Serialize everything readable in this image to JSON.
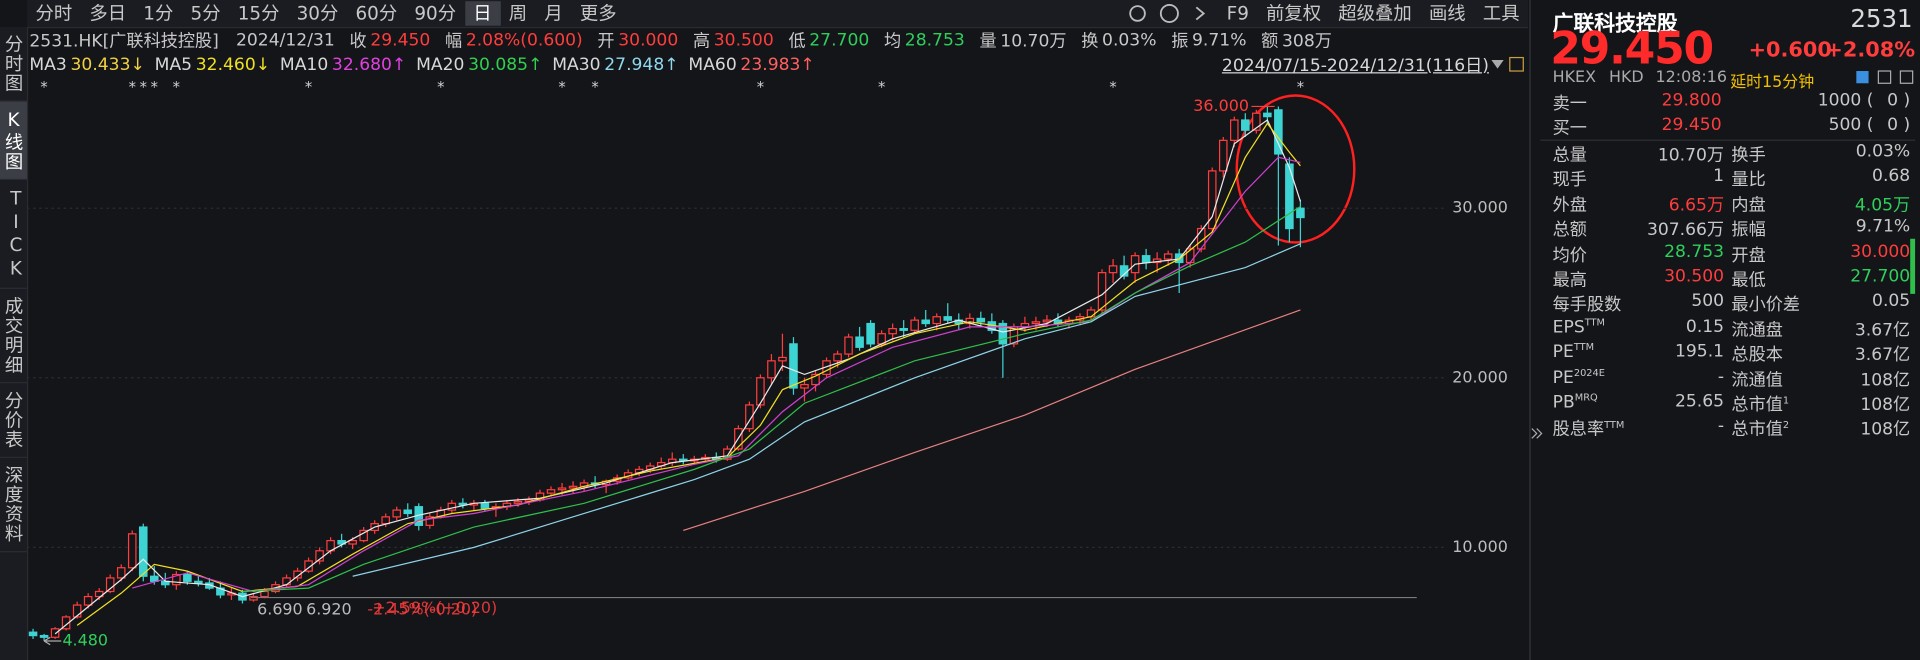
{
  "toolbar": {
    "periods": [
      "分时",
      "多日",
      "1分",
      "5分",
      "15分",
      "30分",
      "60分",
      "90分",
      "日",
      "周",
      "月",
      "更多"
    ],
    "selected": 8,
    "tools": [
      "F9",
      "前复权",
      "超级叠加",
      "画线",
      "工具"
    ]
  },
  "side_tabs": [
    "分时图",
    "K线图",
    "TICK",
    "成交明细",
    "分价表",
    "深度资料"
  ],
  "side_selected": 1,
  "info": {
    "symbol": "2531.HK[广联科技控股]",
    "date": "2024/12/31",
    "fields": [
      {
        "label": "收",
        "value": "29.450",
        "color": "#ff3d3d"
      },
      {
        "label": "幅",
        "value": "2.08%(0.600)",
        "color": "#ff3d3d"
      },
      {
        "label": "开",
        "value": "30.000",
        "color": "#ff3d3d"
      },
      {
        "label": "高",
        "value": "30.500",
        "color": "#ff3d3d"
      },
      {
        "label": "低",
        "value": "27.700",
        "color": "#2fcf5c"
      },
      {
        "label": "均",
        "value": "28.753",
        "color": "#2fcf5c"
      },
      {
        "label": "量",
        "value": "10.70万"
      },
      {
        "label": "换",
        "value": "0.03%"
      },
      {
        "label": "振",
        "value": "9.71%"
      },
      {
        "label": "额",
        "value": "308万"
      }
    ]
  },
  "range": "2024/07/15-2024/12/31(116日)",
  "chart_data": {
    "type": "candlestick",
    "up_color": "#ff3d3d",
    "down_color": "#3ed3d3",
    "ylim": [
      3.36,
      37.8
    ],
    "yticks": [
      {
        "value": 30,
        "label": "30.000"
      },
      {
        "value": 20,
        "label": "20.000"
      },
      {
        "value": 10,
        "label": "10.000"
      }
    ],
    "grid": true,
    "ma": [
      {
        "name": "MA3",
        "value_label": "30.433↓",
        "color": "#f0d040",
        "line_color": "#e8e8e8",
        "x": [
          2,
          5,
          8,
          10,
          12,
          16,
          19,
          23,
          27,
          31,
          35,
          40,
          46,
          52,
          58,
          63,
          66,
          68,
          70,
          74,
          78,
          84,
          88,
          92,
          97,
          100,
          104,
          107,
          109,
          112,
          114,
          115
        ],
        "values": [
          4.9,
          6.5,
          8.1,
          9.3,
          8.0,
          7.8,
          7.1,
          7.8,
          9.8,
          11.2,
          11.9,
          12.6,
          12.9,
          13.8,
          15.0,
          15.4,
          18.5,
          20.7,
          20.2,
          21.1,
          22.3,
          23.4,
          22.7,
          23.2,
          24.9,
          26.7,
          27.0,
          29.5,
          33.8,
          35.2,
          32.4,
          30.4
        ]
      },
      {
        "name": "MA5",
        "value_label": "32.460↓",
        "color": "#f0e020",
        "line_color": "#f0e020",
        "x": [
          4,
          8,
          11,
          14,
          19,
          24,
          29,
          34,
          38,
          44,
          50,
          56,
          63,
          66,
          68,
          71,
          75,
          80,
          85,
          90,
          96,
          100,
          104,
          107,
          110,
          112,
          114,
          115
        ],
        "values": [
          5.4,
          7.3,
          9.0,
          8.6,
          7.4,
          7.7,
          9.6,
          11.4,
          12.0,
          12.5,
          13.6,
          14.5,
          15.3,
          17.2,
          19.3,
          20.1,
          21.4,
          22.6,
          23.3,
          22.8,
          23.6,
          25.7,
          27.0,
          28.6,
          33.0,
          35.0,
          33.3,
          32.5
        ]
      },
      {
        "name": "MA10",
        "value_label": "32.680↑",
        "color": "#e040e0",
        "line_color": "#d040d0",
        "x": [
          9,
          14,
          20,
          25,
          30,
          35,
          40,
          50,
          60,
          64,
          68,
          72,
          78,
          85,
          90,
          96,
          100,
          105,
          110,
          113,
          115
        ],
        "values": [
          7.6,
          8.5,
          7.4,
          7.8,
          9.8,
          11.6,
          12.0,
          13.3,
          14.9,
          15.4,
          18.0,
          20.0,
          21.8,
          23.0,
          23.0,
          23.3,
          25.0,
          26.8,
          31.0,
          33.0,
          32.7
        ]
      },
      {
        "name": "MA20",
        "value_label": "30.085↑",
        "color": "#30d050",
        "line_color": "#2fbf4a",
        "x": [
          19,
          25,
          30,
          40,
          50,
          60,
          65,
          70,
          80,
          90,
          96,
          100,
          105,
          110,
          115
        ],
        "values": [
          7.4,
          7.6,
          9.0,
          11.2,
          12.6,
          14.6,
          15.8,
          18.5,
          21.0,
          22.6,
          23.4,
          25.0,
          26.6,
          28.0,
          30.1
        ]
      },
      {
        "name": "MA30",
        "value_label": "27.948↑",
        "color": "#8fd8f0",
        "line_color": "#8fd3e8",
        "x": [
          29,
          40,
          50,
          60,
          65,
          70,
          80,
          90,
          96,
          100,
          110,
          115
        ],
        "values": [
          8.3,
          10.0,
          12.0,
          14.0,
          15.2,
          17.4,
          20.0,
          22.3,
          23.3,
          24.8,
          26.5,
          27.9
        ]
      },
      {
        "name": "MA60",
        "value_label": "23.983↑",
        "color": "#ff6060",
        "line_color": "#e88080",
        "x": [
          59,
          70,
          80,
          90,
          100,
          115
        ],
        "values": [
          11.0,
          13.3,
          15.6,
          17.8,
          20.5,
          24.0
        ]
      }
    ],
    "ohlc": [
      [
        5.0,
        5.2,
        4.6,
        4.8
      ],
      [
        4.8,
        4.9,
        4.48,
        4.7
      ],
      [
        4.7,
        5.3,
        4.6,
        5.2
      ],
      [
        5.2,
        6.0,
        5.1,
        5.9
      ],
      [
        5.9,
        6.8,
        5.8,
        6.6
      ],
      [
        6.6,
        7.3,
        6.4,
        7.1
      ],
      [
        7.1,
        7.6,
        6.9,
        7.4
      ],
      [
        7.4,
        8.4,
        7.3,
        8.2
      ],
      [
        8.2,
        9.0,
        8.0,
        8.8
      ],
      [
        8.8,
        11.0,
        8.6,
        10.8
      ],
      [
        11.2,
        11.4,
        8.0,
        8.3
      ],
      [
        8.3,
        8.9,
        7.8,
        8.0
      ],
      [
        8.0,
        8.5,
        7.6,
        7.8
      ],
      [
        7.8,
        8.6,
        7.5,
        8.4
      ],
      [
        8.4,
        8.6,
        7.8,
        8.0
      ],
      [
        8.0,
        8.3,
        7.7,
        7.9
      ],
      [
        7.9,
        8.2,
        7.5,
        7.6
      ],
      [
        7.6,
        8.0,
        7.0,
        7.2
      ],
      [
        7.2,
        7.6,
        6.9,
        7.3
      ],
      [
        7.3,
        7.5,
        6.69,
        6.9
      ],
      [
        6.9,
        7.3,
        6.8,
        7.1
      ],
      [
        7.1,
        7.6,
        7.0,
        7.4
      ],
      [
        7.4,
        8.0,
        7.3,
        7.8
      ],
      [
        7.8,
        8.4,
        7.7,
        8.2
      ],
      [
        8.2,
        8.8,
        8.0,
        8.6
      ],
      [
        8.6,
        9.4,
        8.5,
        9.2
      ],
      [
        9.2,
        10.0,
        9.0,
        9.8
      ],
      [
        9.8,
        10.6,
        9.6,
        10.4
      ],
      [
        10.4,
        10.8,
        10.0,
        10.2
      ],
      [
        10.2,
        10.6,
        9.9,
        10.4
      ],
      [
        10.4,
        11.2,
        10.3,
        11.0
      ],
      [
        11.0,
        11.6,
        10.8,
        11.4
      ],
      [
        11.4,
        12.0,
        11.2,
        11.8
      ],
      [
        11.8,
        12.4,
        11.6,
        12.2
      ],
      [
        12.2,
        12.6,
        11.8,
        12.0
      ],
      [
        12.4,
        12.6,
        11.0,
        11.3
      ],
      [
        11.3,
        12.0,
        11.1,
        11.8
      ],
      [
        11.8,
        12.4,
        11.7,
        12.2
      ],
      [
        12.2,
        12.8,
        12.0,
        12.6
      ],
      [
        12.6,
        12.9,
        12.3,
        12.5
      ],
      [
        12.5,
        12.8,
        12.2,
        12.6
      ],
      [
        12.6,
        12.8,
        12.1,
        12.3
      ],
      [
        12.3,
        12.6,
        11.8,
        12.4
      ],
      [
        12.4,
        12.8,
        12.2,
        12.6
      ],
      [
        12.6,
        12.9,
        12.4,
        12.7
      ],
      [
        12.7,
        13.0,
        12.5,
        12.8
      ],
      [
        12.8,
        13.4,
        12.7,
        13.2
      ],
      [
        13.2,
        13.6,
        13.0,
        13.4
      ],
      [
        13.4,
        13.8,
        13.1,
        13.5
      ],
      [
        13.5,
        13.9,
        13.2,
        13.6
      ],
      [
        13.6,
        14.0,
        13.3,
        13.8
      ],
      [
        13.8,
        14.2,
        13.5,
        13.7
      ],
      [
        13.7,
        14.0,
        13.2,
        13.9
      ],
      [
        13.9,
        14.3,
        13.7,
        14.1
      ],
      [
        14.1,
        14.6,
        14.0,
        14.4
      ],
      [
        14.4,
        14.8,
        14.2,
        14.6
      ],
      [
        14.6,
        15.0,
        14.4,
        14.8
      ],
      [
        14.8,
        15.3,
        14.6,
        15.0
      ],
      [
        15.0,
        15.6,
        14.8,
        15.2
      ],
      [
        15.2,
        15.5,
        14.9,
        15.1
      ],
      [
        15.1,
        15.4,
        14.9,
        15.2
      ],
      [
        15.2,
        15.5,
        15.0,
        15.3
      ],
      [
        15.3,
        15.6,
        15.0,
        15.2
      ],
      [
        15.2,
        16.0,
        15.1,
        15.8
      ],
      [
        15.8,
        17.2,
        15.7,
        17.0
      ],
      [
        17.0,
        18.6,
        16.8,
        18.4
      ],
      [
        18.4,
        20.2,
        18.2,
        20.0
      ],
      [
        20.0,
        21.4,
        19.6,
        21.0
      ],
      [
        21.0,
        22.6,
        20.4,
        21.2
      ],
      [
        22.0,
        22.4,
        19.0,
        19.4
      ],
      [
        19.4,
        20.0,
        18.6,
        19.6
      ],
      [
        19.6,
        20.4,
        19.2,
        20.2
      ],
      [
        20.2,
        21.2,
        20.0,
        21.0
      ],
      [
        21.0,
        21.6,
        20.6,
        21.4
      ],
      [
        21.4,
        22.6,
        21.2,
        22.4
      ],
      [
        22.4,
        23.0,
        21.6,
        21.8
      ],
      [
        23.2,
        23.4,
        21.8,
        22.0
      ],
      [
        22.0,
        22.8,
        21.8,
        22.6
      ],
      [
        22.6,
        23.2,
        22.2,
        22.9
      ],
      [
        22.9,
        23.4,
        22.4,
        22.8
      ],
      [
        22.8,
        23.6,
        22.6,
        23.4
      ],
      [
        23.4,
        24.0,
        23.0,
        23.2
      ],
      [
        23.2,
        23.8,
        22.8,
        23.6
      ],
      [
        23.6,
        24.4,
        23.2,
        23.4
      ],
      [
        23.4,
        23.8,
        22.8,
        23.2
      ],
      [
        23.2,
        23.8,
        22.9,
        23.5
      ],
      [
        23.5,
        23.9,
        23.0,
        23.3
      ],
      [
        23.3,
        23.8,
        22.6,
        22.8
      ],
      [
        23.2,
        23.4,
        20.0,
        22.0
      ],
      [
        22.0,
        23.2,
        21.8,
        23.0
      ],
      [
        23.0,
        23.6,
        22.7,
        23.2
      ],
      [
        23.2,
        23.6,
        22.8,
        23.3
      ],
      [
        23.3,
        23.7,
        23.0,
        23.4
      ],
      [
        23.4,
        23.8,
        23.0,
        23.2
      ],
      [
        23.2,
        23.6,
        22.9,
        23.4
      ],
      [
        23.4,
        23.8,
        23.1,
        23.6
      ],
      [
        23.6,
        24.2,
        23.4,
        24.0
      ],
      [
        24.0,
        26.4,
        23.8,
        26.2
      ],
      [
        26.2,
        27.0,
        25.6,
        26.6
      ],
      [
        26.6,
        27.2,
        25.8,
        26.0
      ],
      [
        26.2,
        27.4,
        25.6,
        27.2
      ],
      [
        27.2,
        27.6,
        26.4,
        26.8
      ],
      [
        26.8,
        27.4,
        26.2,
        27.0
      ],
      [
        27.0,
        27.5,
        26.6,
        27.3
      ],
      [
        27.3,
        27.6,
        25.0,
        26.8
      ],
      [
        26.8,
        27.8,
        26.5,
        27.6
      ],
      [
        27.6,
        29.0,
        27.4,
        28.8
      ],
      [
        28.8,
        32.4,
        28.6,
        32.2
      ],
      [
        32.2,
        34.2,
        31.8,
        34.0
      ],
      [
        34.0,
        35.4,
        33.6,
        35.2
      ],
      [
        35.2,
        35.6,
        34.2,
        34.6
      ],
      [
        34.6,
        35.8,
        34.4,
        35.6
      ],
      [
        35.6,
        36.0,
        35.0,
        35.4
      ],
      [
        35.8,
        36.0,
        27.8,
        33.2
      ],
      [
        32.6,
        33.0,
        28.0,
        28.8
      ],
      [
        30.0,
        30.5,
        27.7,
        29.45
      ]
    ],
    "events": {
      "symbol": "*",
      "index": [
        1,
        9,
        10,
        11,
        13,
        25,
        37,
        48,
        51,
        66,
        77,
        98,
        115
      ]
    },
    "annotations": [
      {
        "text": "36.000",
        "index": 113,
        "value": 36,
        "color": "#ff3d3d"
      },
      {
        "text": "4.480",
        "index": 1,
        "value": 4.48,
        "color": "#2fcf5c"
      }
    ],
    "measure_labels": [
      {
        "text": "6.690",
        "color": "#d8d8d8"
      },
      {
        "text": "6.920",
        "color": "#d8d8d8"
      },
      {
        "text": "-2.45%(-0.20)",
        "color": "#ff3d3d"
      },
      {
        "text": "+2.59%(+0.20)",
        "color": "#ff3d3d"
      }
    ]
  },
  "quote": {
    "name": "广联科技控股",
    "code": "2531",
    "price": "29.450",
    "change": "+0.600",
    "change_pct": "+2.08%",
    "exchange": "HKEX",
    "currency": "HKD",
    "time": "12:08:16",
    "delay": "延时15分钟",
    "book": [
      {
        "label": "卖一",
        "price": "29.800",
        "volume": "1000 (",
        "queue": "0 )"
      },
      {
        "label": "买一",
        "price": "29.450",
        "volume": "500 (",
        "queue": "0 )"
      }
    ],
    "rows": [
      [
        {
          "label": "总量",
          "value": "10.70万"
        },
        {
          "label": "换手",
          "value": "0.03%"
        }
      ],
      [
        {
          "label": "现手",
          "value": "1"
        },
        {
          "label": "量比",
          "value": "0.68"
        }
      ],
      [
        {
          "label": "外盘",
          "value": "6.65万",
          "color": "#ff3d3d"
        },
        {
          "label": "内盘",
          "value": "4.05万",
          "color": "#2fcf5c"
        }
      ],
      [
        {
          "label": "总额",
          "value": "307.66万"
        },
        {
          "label": "振幅",
          "value": "9.71%"
        }
      ],
      [
        {
          "label": "均价",
          "value": "28.753",
          "color": "#2fcf5c"
        },
        {
          "label": "开盘",
          "value": "30.000",
          "color": "#ff3d3d"
        }
      ],
      [
        {
          "label": "最高",
          "value": "30.500",
          "color": "#ff3d3d"
        },
        {
          "label": "最低",
          "value": "27.700",
          "color": "#2fcf5c"
        }
      ],
      [
        {
          "label": "每手股数",
          "value": "500"
        },
        {
          "label": "最小价差",
          "value": "0.05"
        }
      ],
      [
        {
          "label": "EPS",
          "sup": "TTM",
          "value": "0.15"
        },
        {
          "label": "流通盘",
          "value": "3.67亿"
        }
      ],
      [
        {
          "label": "PE",
          "sup": "TTM",
          "value": "195.1"
        },
        {
          "label": "总股本",
          "value": "3.67亿"
        }
      ],
      [
        {
          "label": "PE",
          "sup": "2024E",
          "value": "-"
        },
        {
          "label": "流通值",
          "value": "108亿"
        }
      ],
      [
        {
          "label": "PB",
          "sup": "MRQ",
          "value": "25.65"
        },
        {
          "label": "总市值",
          "sup": "1",
          "value": "108亿"
        }
      ],
      [
        {
          "label": "股息率",
          "sup": "TTM",
          "value": "-"
        },
        {
          "label": "总市值",
          "sup": "2",
          "value": "108亿"
        }
      ]
    ]
  }
}
